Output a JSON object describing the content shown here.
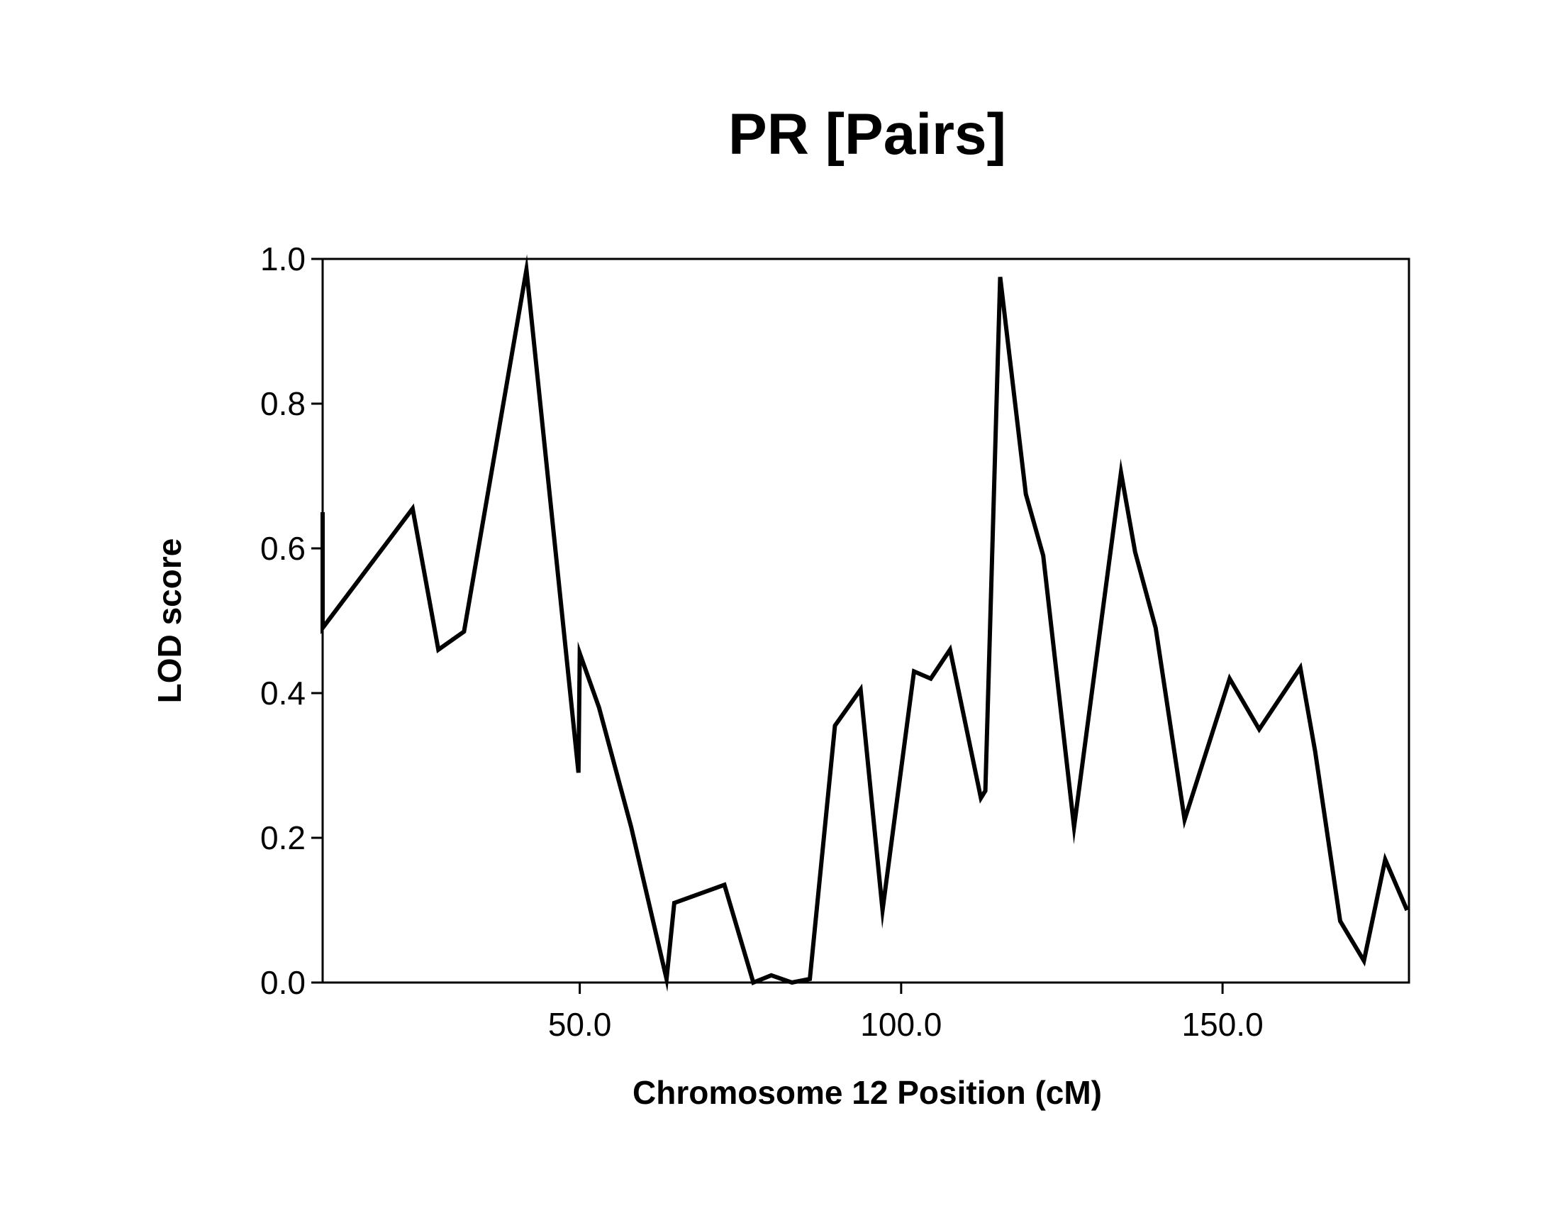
{
  "chart_data": {
    "type": "line",
    "title": "PR [Pairs]",
    "xlabel": "Chromosome 12 Position (cM)",
    "ylabel": "LOD score",
    "xlim": [
      10,
      179
    ],
    "ylim": [
      0,
      1.0
    ],
    "x_ticks": [
      50,
      100,
      150
    ],
    "x_tick_labels": [
      "50.0",
      "100.0",
      "150.0"
    ],
    "y_ticks": [
      0,
      0.2,
      0.4,
      0.6,
      0.8,
      1.0
    ],
    "y_tick_labels": [
      "0.0",
      "0.2",
      "0.4",
      "0.6",
      "0.8",
      "1.0"
    ],
    "grid": false,
    "line_color": "#000000",
    "series": [
      {
        "x": [
          10,
          10,
          24,
          28,
          32,
          41.7,
          49.8,
          50,
          53,
          58,
          63.5,
          64.7,
          72.5,
          77,
          79.8,
          83,
          85.8,
          89.7,
          93.7,
          97.1,
          102,
          104.6,
          107.6,
          112.4,
          113.1,
          115.4,
          119.4,
          122.1,
          126.9,
          134.2,
          136.4,
          139.6,
          144.1,
          151.1,
          155.7,
          162.1,
          164.4,
          168.3,
          172,
          175.3,
          178.7
        ],
        "y": [
          0.65,
          0.49,
          0.655,
          0.46,
          0.485,
          0.985,
          0.29,
          0.455,
          0.38,
          0.215,
          0.005,
          0.11,
          0.135,
          0.0,
          0.01,
          0.0,
          0.005,
          0.355,
          0.405,
          0.1,
          0.43,
          0.42,
          0.46,
          0.255,
          0.265,
          0.975,
          0.675,
          0.59,
          0.215,
          0.705,
          0.595,
          0.49,
          0.225,
          0.42,
          0.35,
          0.435,
          0.32,
          0.085,
          0.03,
          0.17,
          0.1
        ]
      }
    ]
  }
}
